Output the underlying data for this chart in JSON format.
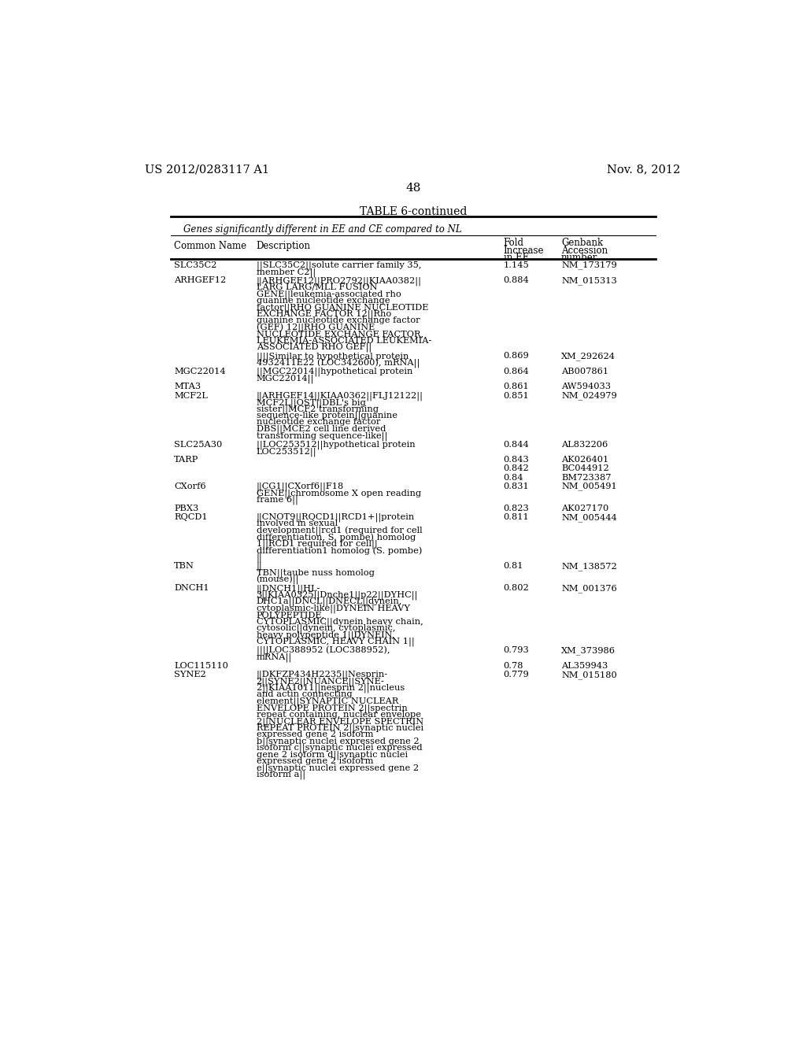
{
  "header_left": "US 2012/0283117 A1",
  "header_right": "Nov. 8, 2012",
  "page_number": "48",
  "table_title": "TABLE 6-continued",
  "table_subtitle": "Genes significantly different in EE and CE compared to NL",
  "rows": [
    {
      "name": "SLC35C2",
      "description": "||SLC35C2||solute carrier family 35,\nmember C2||",
      "fold": "1.145",
      "accession": "NM_173179"
    },
    {
      "name": "ARHGEF12",
      "description": "||ARHGEF12||PRO2792||KIAA0382||\nLARG LARG/MLL FUSION\nGENE||leukemia-associated rho\nguanine nucleotide exchange\nfactor||RHO GUANINE NUCLEOTIDE\nEXCHANGE FACTOR 12||Rho\nguanine nucleotide exchange factor\n(GEF) 12||RHO GUANINE\nNUCLEOTIDE EXCHANGE FACTOR,\nLEUKEMIA-ASSOCIATED LEUKEMIA-\nASSOCIATED RHO GEF||",
      "fold": "0.884",
      "accession": "NM_015313"
    },
    {
      "name": "",
      "description": "||||Similar to hypothetical protein\n4932411E22 (LOC342600), mRNA||",
      "fold": "0.869",
      "accession": "XM_292624"
    },
    {
      "name": "MGC22014",
      "description": "||MGC22014||hypothetical protein\nMGC22014||",
      "fold": "0.864",
      "accession": "AB007861"
    },
    {
      "name": "MTA3",
      "description": "",
      "fold": "0.861",
      "accession": "AW594033"
    },
    {
      "name": "MCF2L",
      "description": "||ARHGEF14||KIAA0362||FLJ12122||\nMCF2L||OST||DBL's big\nsister||MCF2 transforming\nsequence-like protein||guanine\nnucleotide exchange factor\nDBS||MCE2 cell line derived\ntransforming sequence-like||",
      "fold": "0.851",
      "accession": "NM_024979"
    },
    {
      "name": "SLC25A30",
      "description": "||LOC253512||hypothetical protein\nLOC253512||",
      "fold": "0.844",
      "accession": "AL832206"
    },
    {
      "name": "TARP",
      "description": "",
      "fold": "0.843",
      "accession": "AK026401"
    },
    {
      "name": "",
      "description": "",
      "fold": "0.842",
      "accession": "BC044912"
    },
    {
      "name": "",
      "description": "",
      "fold": "0.84",
      "accession": "BM723387"
    },
    {
      "name": "CXorf6",
      "description": "||CG1||CXorf6||F18\nGENE||chromosome X open reading\nframe 6||",
      "fold": "0.831",
      "accession": "NM_005491"
    },
    {
      "name": "PBX3",
      "description": "",
      "fold": "0.823",
      "accession": "AK027170"
    },
    {
      "name": "RQCD1",
      "description": "||CNOT9||RQCD1||RCD1+||protein\ninvolved in sexual\ndevelopment||rcd1 (required for cell\ndifferentiation, S. pombe) homolog\n1||RCD1 required for cell||\ndifferentiation1 homolog (S. pombe)\n||",
      "fold": "0.811",
      "accession": "NM_005444"
    },
    {
      "name": "TBN",
      "description": "||\nTBN||taube nuss homolog\n(mouse)||",
      "fold": "0.81",
      "accession": "NM_138572"
    },
    {
      "name": "DNCH1",
      "description": "||DNCH1||HL-\n3||KIAA0325||Dnche1||p22||DYHC||\nDHC1a||DNCL||DNECL||dynein,\ncytoplasmic-like||DYNEIN HEAVY\nPOLYPEPTIDE,\nCYTOPLASMIC||dynein heavy chain,\ncytosolic||dynein, cytoplasmic,\nheavy polypeptide 1||DYNEIN,\nCYTOPLASMIC, HEAVY CHAIN 1||",
      "fold": "0.802",
      "accession": "NM_001376"
    },
    {
      "name": "",
      "description": "||||LOC388952 (LOC388952),\nmRNA||",
      "fold": "0.793",
      "accession": "XM_373986"
    },
    {
      "name": "LOC115110",
      "description": "",
      "fold": "0.78",
      "accession": "AL359943"
    },
    {
      "name": "SYNE2",
      "description": "||DKFZP434H2235||Nesprin-\n2||SYNE2||NUANCE||SYNE-\n2||KIAA1011||nesprin 2||nucleus\nand actin connecting\nelement||SYNAPTIC NUCLEAR\nENVELOPE PROTEIN 2||spectrin\nrepeat containing, nuclear envelope\n2||NUCLEAR ENVELOPE SPECTRIN\nREPEAT PROTEIN 2||synaptic nuclei\nexpressed gene 2 isoform\nb||synaptic nuclei expressed gene 2\nisoform c||synaptic nuclei expressed\ngene 2 isoform d||synaptic nuclei\nexpressed gene 2 isoform\ne||synaptic nuclei expressed gene 2\nisoform a||",
      "fold": "0.779",
      "accession": "NM_015180"
    }
  ]
}
